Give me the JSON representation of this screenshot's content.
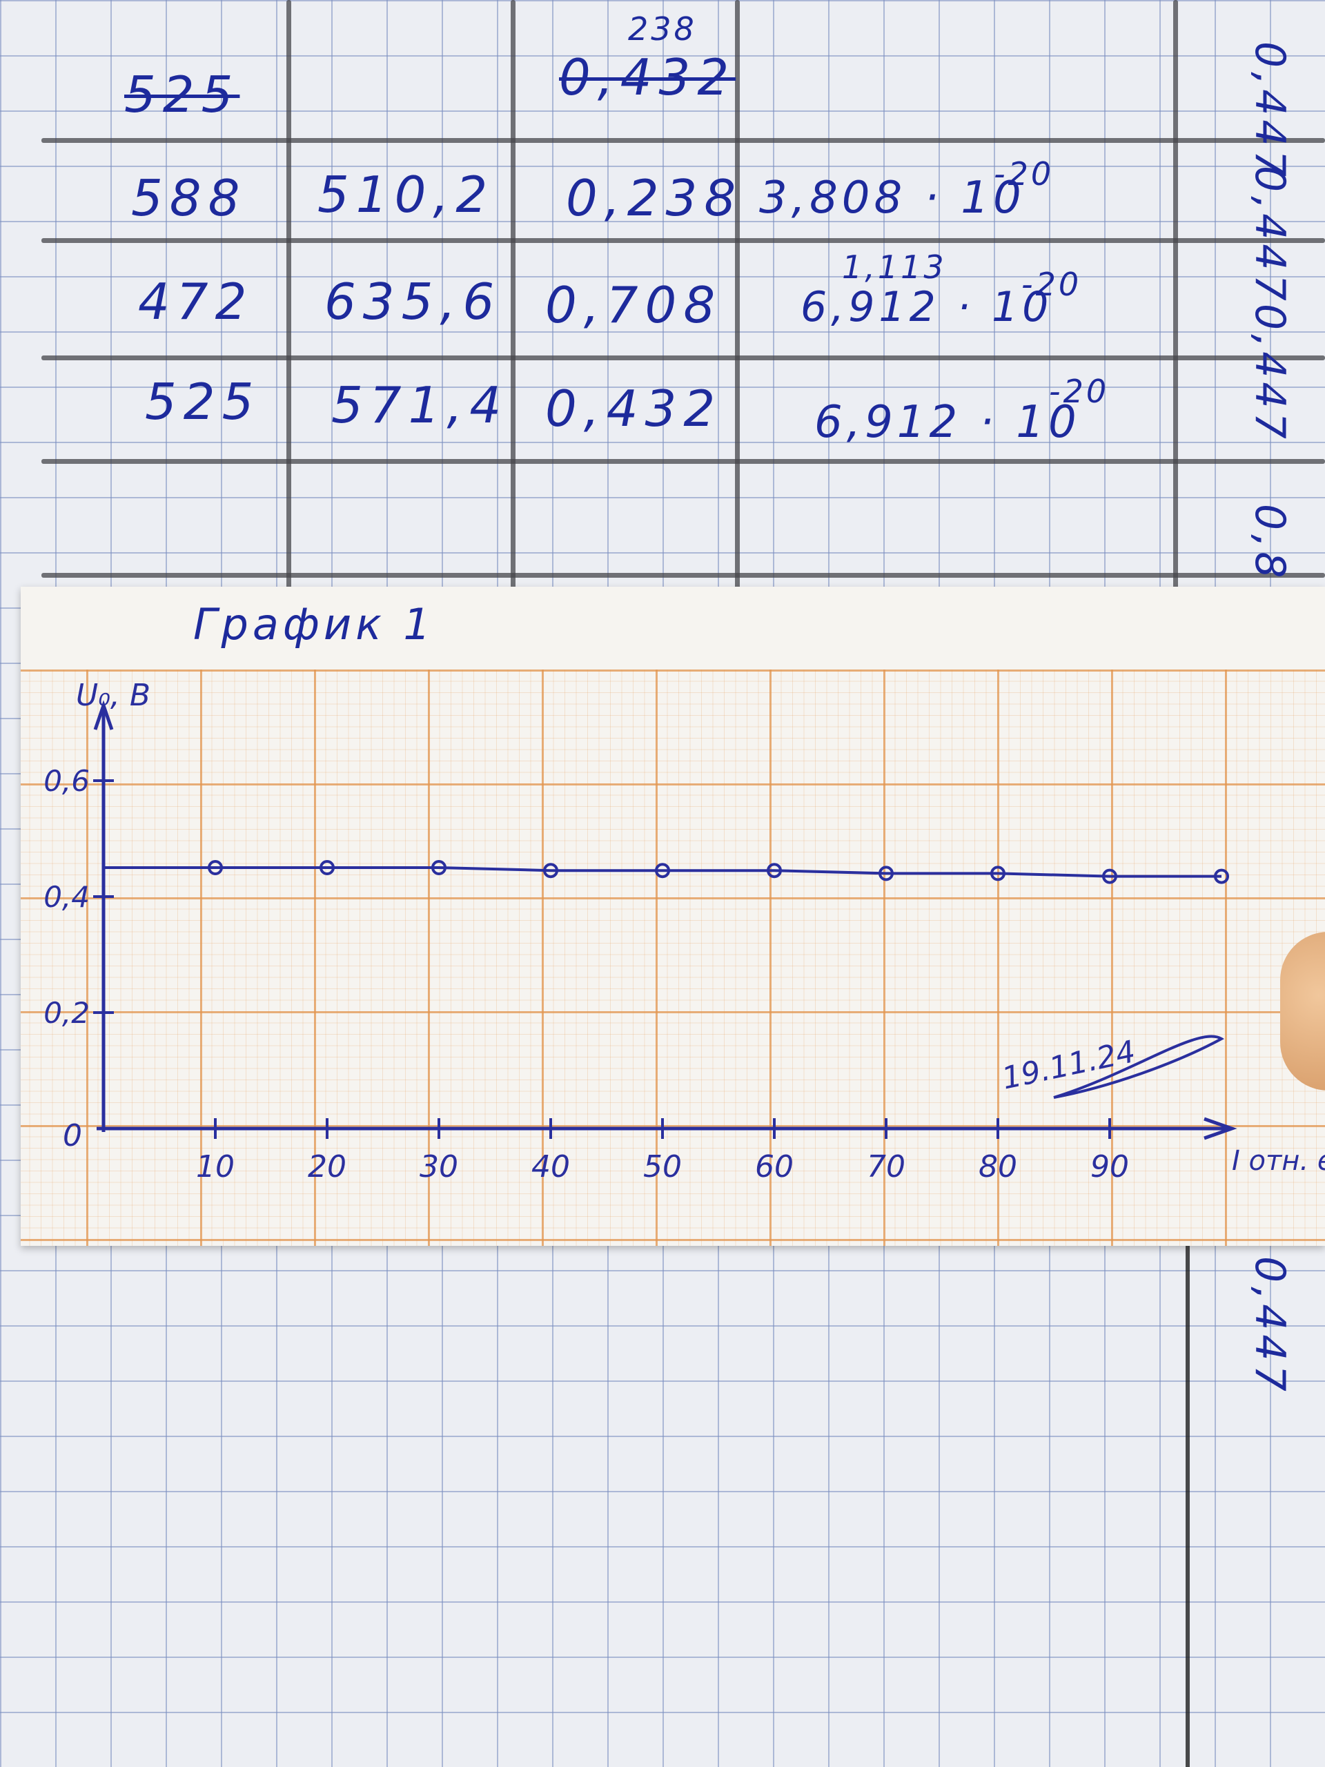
{
  "table": {
    "rows": [
      {
        "col1": "525",
        "col3": "0,432",
        "col3_above": "238",
        "strike": true
      },
      {
        "col1": "588",
        "col2": "510,2",
        "col3": "0,238",
        "col4_base": "3,808 · 10",
        "col4_exp": "-20"
      },
      {
        "col1": "472",
        "col2": "635,6",
        "col3": "0,708",
        "col4_base": "6,912 · 10",
        "col4_exp": "-20",
        "col4_above": "1,113"
      },
      {
        "col1": "525",
        "col2": "571,4",
        "col3": "0,432",
        "col4_base": "6,912 · 10",
        "col4_exp": "-20"
      }
    ],
    "side_values": [
      "0,447",
      "0,447",
      "0,447",
      "0,8"
    ],
    "side_lower": "0,447"
  },
  "chart_data": {
    "type": "line",
    "title": "График 1",
    "ylabel": "U₀, В",
    "xlabel": "I отн. ед",
    "origin_label": "0",
    "x_ticks": [
      "10",
      "20",
      "30",
      "40",
      "50",
      "60",
      "70",
      "80",
      "90"
    ],
    "y_ticks": [
      "0,2",
      "0,4",
      "0,6"
    ],
    "xlim": [
      0,
      100
    ],
    "ylim": [
      0,
      0.7
    ],
    "series": [
      {
        "x": [
          10,
          20,
          30,
          40,
          50,
          60,
          70,
          80,
          90,
          100
        ],
        "y": [
          0.45,
          0.45,
          0.45,
          0.445,
          0.445,
          0.445,
          0.44,
          0.44,
          0.435,
          0.435
        ],
        "color": "#2a2f9e"
      }
    ],
    "annotation": "19.11.24",
    "grid": true
  }
}
